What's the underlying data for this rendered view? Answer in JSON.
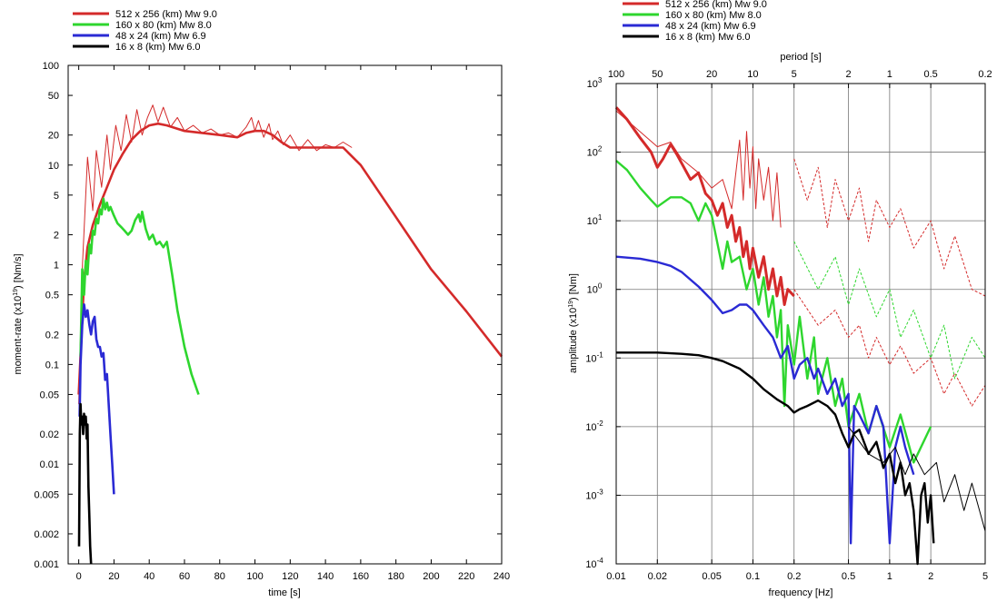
{
  "chart_data": [
    {
      "type": "line",
      "xlabel": "time [s]",
      "ylabel": "moment-rate (x10",
      "ylabel_sup": "19",
      "ylabel_tail": ") [Nm/s]",
      "xscale": "linear",
      "yscale": "log",
      "xlim": [
        -6,
        240
      ],
      "ylim": [
        0.001,
        100
      ],
      "xticks": [
        0,
        20,
        40,
        60,
        80,
        100,
        120,
        140,
        160,
        180,
        200,
        220,
        240
      ],
      "yticks": [
        0.001,
        0.002,
        0.005,
        0.01,
        0.02,
        0.05,
        0.1,
        0.2,
        0.5,
        1,
        2,
        5,
        10,
        20,
        50,
        100
      ],
      "ytick_labels": [
        "0.001",
        "0.002",
        "0.005",
        "0.01",
        "0.02",
        "0.05",
        "0.1",
        "0.2",
        "0.5",
        "1",
        "2",
        "5",
        "10",
        "20",
        "50",
        "100"
      ],
      "legend": {
        "placement": "above-top-left",
        "entries": [
          {
            "label": "512 x 256 (km) Mw 9.0",
            "color": "#d42a2a"
          },
          {
            "label": "160 x 80 (km) Mw 8.0",
            "color": "#2ed62e"
          },
          {
            "label": "48 x 24 (km) Mw 6.9",
            "color": "#2a2ad4"
          },
          {
            "label": "16 x 8 (km) Mw 6.0",
            "color": "#000000"
          }
        ]
      },
      "series": [
        {
          "name": "512 x 256 (km) Mw 9.0",
          "color": "#d42a2a",
          "style": "thick",
          "x": [
            0,
            3,
            5,
            8,
            12,
            16,
            20,
            25,
            30,
            35,
            40,
            45,
            50,
            60,
            70,
            80,
            90,
            95,
            100,
            105,
            110,
            115,
            120,
            130,
            140,
            150,
            160,
            180,
            200,
            220,
            240
          ],
          "y": [
            0.05,
            0.7,
            1.5,
            2.5,
            4,
            6,
            9,
            13,
            18,
            22,
            25,
            26,
            25,
            22,
            21,
            20,
            19,
            21,
            22,
            22,
            20,
            17,
            15,
            15,
            15,
            15,
            10,
            3,
            0.9,
            0.34,
            0.12
          ]
        },
        {
          "name": "512 x 256 (km) Mw 9.0",
          "color": "#d42a2a",
          "style": "thin",
          "x": [
            0,
            2,
            5,
            8,
            10,
            13,
            16,
            18,
            21,
            24,
            27,
            30,
            33,
            36,
            39,
            42,
            45,
            48,
            52,
            56,
            60,
            65,
            70,
            75,
            80,
            85,
            90,
            95,
            98,
            100,
            102,
            105,
            108,
            110,
            113,
            116,
            120,
            125,
            130,
            135,
            140,
            145,
            150,
            155
          ],
          "y": [
            0.04,
            0.9,
            12,
            3.5,
            14,
            6,
            20,
            9,
            25,
            14,
            32,
            17,
            36,
            20,
            30,
            40,
            27,
            38,
            24,
            30,
            22,
            25,
            21,
            23,
            20,
            21,
            19,
            24,
            30,
            22,
            28,
            19,
            26,
            18,
            22,
            16,
            20,
            14,
            18,
            14,
            16,
            15,
            17,
            15
          ]
        },
        {
          "name": "160 x 80 (km) Mw 8.0",
          "color": "#2ed62e",
          "x": [
            1,
            2,
            3,
            4,
            5,
            6,
            7,
            8,
            9,
            10,
            11,
            12,
            13,
            14,
            15,
            16,
            17,
            18,
            20,
            22,
            24,
            26,
            28,
            30,
            32,
            34,
            35,
            36,
            38,
            40,
            42,
            44,
            46,
            48,
            50,
            53,
            56,
            60,
            64,
            68
          ],
          "y": [
            0.12,
            0.9,
            0.5,
            1.1,
            0.8,
            1.6,
            1.3,
            2.2,
            2.0,
            2.9,
            2.6,
            3.6,
            3.2,
            4.6,
            3.6,
            4.2,
            3.5,
            3.8,
            3.1,
            2.6,
            2.4,
            2.2,
            2.0,
            2.2,
            2.8,
            3.2,
            2.7,
            3.4,
            2.3,
            1.8,
            2.0,
            1.6,
            1.7,
            1.5,
            1.7,
            0.8,
            0.35,
            0.15,
            0.08,
            0.05
          ]
        },
        {
          "name": "48 x 24 (km) Mw 6.9",
          "color": "#2a2ad4",
          "x": [
            0.5,
            1,
            2,
            3,
            4,
            5,
            6,
            7,
            8,
            9,
            10,
            11,
            12,
            13,
            14,
            15,
            16,
            17,
            18,
            19,
            20
          ],
          "y": [
            0.03,
            0.1,
            0.25,
            0.4,
            0.3,
            0.35,
            0.25,
            0.2,
            0.27,
            0.3,
            0.18,
            0.15,
            0.15,
            0.12,
            0.13,
            0.07,
            0.08,
            0.04,
            0.02,
            0.01,
            0.005
          ]
        },
        {
          "name": "16 x 8 (km) Mw 6.0",
          "color": "#000000",
          "x": [
            0.2,
            0.6,
            1,
            1.5,
            2,
            2.5,
            3,
            3.5,
            4,
            4.5,
            5,
            5.5,
            6,
            6.5,
            7
          ],
          "y": [
            0.0015,
            0.02,
            0.04,
            0.025,
            0.03,
            0.02,
            0.032,
            0.025,
            0.03,
            0.018,
            0.025,
            0.006,
            0.003,
            0.0015,
            0.001
          ]
        }
      ]
    },
    {
      "type": "line",
      "xlabel": "frequency [Hz]",
      "ylabel": "amplitude (x10",
      "ylabel_sup": "19",
      "ylabel_tail": ") [Nm]",
      "top_axis_label": "period [s]",
      "xscale": "log",
      "yscale": "log",
      "grid": true,
      "xlim": [
        0.01,
        5
      ],
      "ylim": [
        0.0001,
        1000
      ],
      "xticks": [
        0.01,
        0.02,
        0.05,
        0.1,
        0.2,
        0.5,
        1,
        2,
        5
      ],
      "xtick_labels": [
        "0.01",
        "0.02",
        "0.05",
        "0.1",
        "0.2",
        "0.5",
        "1",
        "2",
        "5"
      ],
      "yticks": [
        0.0001,
        0.001,
        0.01,
        0.1,
        1,
        10,
        100,
        1000
      ],
      "ytick_exponents": [
        "-4",
        "-3",
        "-2",
        "-1",
        "0",
        "1",
        "2",
        "3"
      ],
      "top_ticks_period": [
        100,
        50,
        20,
        10,
        5,
        2,
        1,
        0.5,
        0.2
      ],
      "top_tick_labels": [
        "100",
        "50",
        "20",
        "10",
        "5",
        "2",
        "1",
        "0.5",
        "0.2"
      ],
      "legend": {
        "placement": "above-top-left",
        "entries": [
          {
            "label": "512 x 256 (km) Mw 9.0",
            "color": "#d42a2a"
          },
          {
            "label": "160 x 80 (km) Mw 8.0",
            "color": "#2ed62e"
          },
          {
            "label": "48 x 24 (km) Mw 6.9",
            "color": "#2a2ad4"
          },
          {
            "label": "16 x 8 (km) Mw 6.0",
            "color": "#000000"
          }
        ]
      },
      "series": [
        {
          "name": "512 x 256 (km) Mw 9.0",
          "color": "#d42a2a",
          "style": "thick",
          "x": [
            0.01,
            0.012,
            0.015,
            0.018,
            0.02,
            0.022,
            0.025,
            0.028,
            0.03,
            0.035,
            0.04,
            0.045,
            0.05,
            0.055,
            0.06,
            0.065,
            0.07,
            0.075,
            0.08,
            0.085,
            0.09,
            0.095,
            0.1,
            0.11,
            0.12,
            0.13,
            0.14,
            0.15,
            0.16,
            0.17,
            0.18,
            0.2
          ],
          "y": [
            450,
            300,
            160,
            100,
            60,
            80,
            130,
            90,
            70,
            40,
            50,
            25,
            20,
            12,
            18,
            8,
            12,
            5,
            8,
            3,
            5,
            2,
            4,
            1.5,
            3,
            1,
            2,
            0.8,
            1.5,
            0.6,
            1,
            0.8
          ]
        },
        {
          "name": "512 x 256 (km) Mw 9.0",
          "color": "#d42a2a",
          "style": "thin",
          "x": [
            0.01,
            0.02,
            0.025,
            0.03,
            0.04,
            0.05,
            0.06,
            0.07,
            0.08,
            0.085,
            0.09,
            0.095,
            0.1,
            0.105,
            0.11,
            0.12,
            0.13,
            0.14,
            0.15,
            0.16
          ],
          "y": [
            400,
            120,
            140,
            80,
            50,
            30,
            40,
            15,
            150,
            20,
            200,
            30,
            120,
            15,
            80,
            20,
            60,
            10,
            50,
            8
          ]
        },
        {
          "name": "512 x 256 (km) Mw 9.0",
          "color": "#d42a2a",
          "style": "dashed",
          "x": [
            0.2,
            0.25,
            0.3,
            0.35,
            0.4,
            0.5,
            0.6,
            0.7,
            0.8,
            1,
            1.2,
            1.5,
            2,
            2.5,
            3,
            4,
            5
          ],
          "y": [
            80,
            20,
            60,
            8,
            40,
            10,
            30,
            5,
            20,
            8,
            15,
            4,
            10,
            2,
            6,
            1,
            0.8
          ]
        },
        {
          "name": "512 x 256 (km) Mw 9.0",
          "color": "#d42a2a",
          "style": "dashed",
          "x": [
            0.2,
            0.3,
            0.4,
            0.5,
            0.6,
            0.7,
            0.8,
            1,
            1.2,
            1.5,
            2,
            2.5,
            3,
            4,
            5
          ],
          "y": [
            1,
            0.3,
            0.5,
            0.2,
            0.3,
            0.1,
            0.2,
            0.08,
            0.15,
            0.06,
            0.1,
            0.03,
            0.06,
            0.02,
            0.04
          ]
        },
        {
          "name": "160 x 80 (km) Mw 8.0",
          "color": "#2ed62e",
          "x": [
            0.01,
            0.012,
            0.015,
            0.018,
            0.02,
            0.025,
            0.03,
            0.035,
            0.04,
            0.045,
            0.05,
            0.06,
            0.065,
            0.07,
            0.08,
            0.09,
            0.1,
            0.11,
            0.12,
            0.13,
            0.14,
            0.15,
            0.16,
            0.17,
            0.18,
            0.2,
            0.22,
            0.25,
            0.28,
            0.3,
            0.35,
            0.4,
            0.45,
            0.5,
            0.6,
            0.7,
            0.8,
            1,
            1.2,
            1.5,
            2
          ],
          "y": [
            75,
            55,
            30,
            20,
            16,
            22,
            22,
            18,
            10,
            18,
            12,
            2.0,
            5,
            2.5,
            3,
            1,
            2,
            0.6,
            1.5,
            0.4,
            0.8,
            0.2,
            0.5,
            0.02,
            0.3,
            0.08,
            0.4,
            0.05,
            0.2,
            0.03,
            0.1,
            0.02,
            0.05,
            0.01,
            0.03,
            0.008,
            0.02,
            0.005,
            0.015,
            0.003,
            0.01
          ]
        },
        {
          "name": "160 x 80 (km) Mw 8.0",
          "color": "#2ed62e",
          "style": "dashed",
          "x": [
            0.2,
            0.3,
            0.4,
            0.5,
            0.6,
            0.8,
            1,
            1.2,
            1.5,
            2,
            2.5,
            3,
            4,
            5
          ],
          "y": [
            5,
            1,
            3,
            0.6,
            2,
            0.4,
            1,
            0.2,
            0.5,
            0.1,
            0.3,
            0.05,
            0.2,
            0.1
          ]
        },
        {
          "name": "48 x 24 (km) Mw 6.9",
          "color": "#2a2ad4",
          "x": [
            0.01,
            0.015,
            0.02,
            0.025,
            0.03,
            0.04,
            0.05,
            0.06,
            0.07,
            0.08,
            0.09,
            0.1,
            0.12,
            0.14,
            0.16,
            0.18,
            0.2,
            0.22,
            0.25,
            0.28,
            0.3,
            0.35,
            0.4,
            0.45,
            0.5,
            0.52,
            0.55,
            0.6,
            0.7,
            0.8,
            0.9,
            1,
            1.1,
            1.2,
            1.3,
            1.5
          ],
          "y": [
            3,
            2.8,
            2.5,
            2.2,
            1.8,
            1.1,
            0.7,
            0.45,
            0.5,
            0.6,
            0.6,
            0.5,
            0.3,
            0.2,
            0.1,
            0.15,
            0.05,
            0.08,
            0.1,
            0.05,
            0.07,
            0.03,
            0.05,
            0.02,
            0.03,
            0.0002,
            0.02,
            0.015,
            0.008,
            0.02,
            0.01,
            0.0002,
            0.005,
            0.01,
            0.005,
            0.002
          ]
        },
        {
          "name": "16 x 8 (km) Mw 6.0",
          "color": "#000000",
          "x": [
            0.01,
            0.02,
            0.03,
            0.04,
            0.05,
            0.06,
            0.08,
            0.1,
            0.12,
            0.15,
            0.18,
            0.2,
            0.22,
            0.25,
            0.3,
            0.35,
            0.4,
            0.45,
            0.5,
            0.55,
            0.6,
            0.7,
            0.8,
            0.9,
            1,
            1.1,
            1.2,
            1.3,
            1.4,
            1.5,
            1.6,
            1.7,
            1.8,
            1.9,
            2,
            2.1
          ],
          "y": [
            0.12,
            0.12,
            0.115,
            0.11,
            0.1,
            0.09,
            0.07,
            0.05,
            0.035,
            0.025,
            0.02,
            0.016,
            0.018,
            0.02,
            0.024,
            0.02,
            0.015,
            0.008,
            0.005,
            0.008,
            0.009,
            0.004,
            0.006,
            0.0025,
            0.004,
            0.0015,
            0.003,
            0.001,
            0.0015,
            0.0006,
            0.0001,
            0.001,
            0.0015,
            0.0004,
            0.001,
            0.0002
          ]
        },
        {
          "name": "16 x 8 (km) Mw 6.0",
          "color": "#000000",
          "style": "thin",
          "x": [
            0.5,
            0.7,
            0.9,
            1.1,
            1.3,
            1.5,
            1.8,
            2.2,
            2.5,
            3,
            3.5,
            4,
            5
          ],
          "y": [
            0.01,
            0.004,
            0.003,
            0.005,
            0.002,
            0.004,
            0.002,
            0.003,
            0.0008,
            0.002,
            0.0006,
            0.0015,
            0.0003
          ]
        }
      ]
    }
  ]
}
